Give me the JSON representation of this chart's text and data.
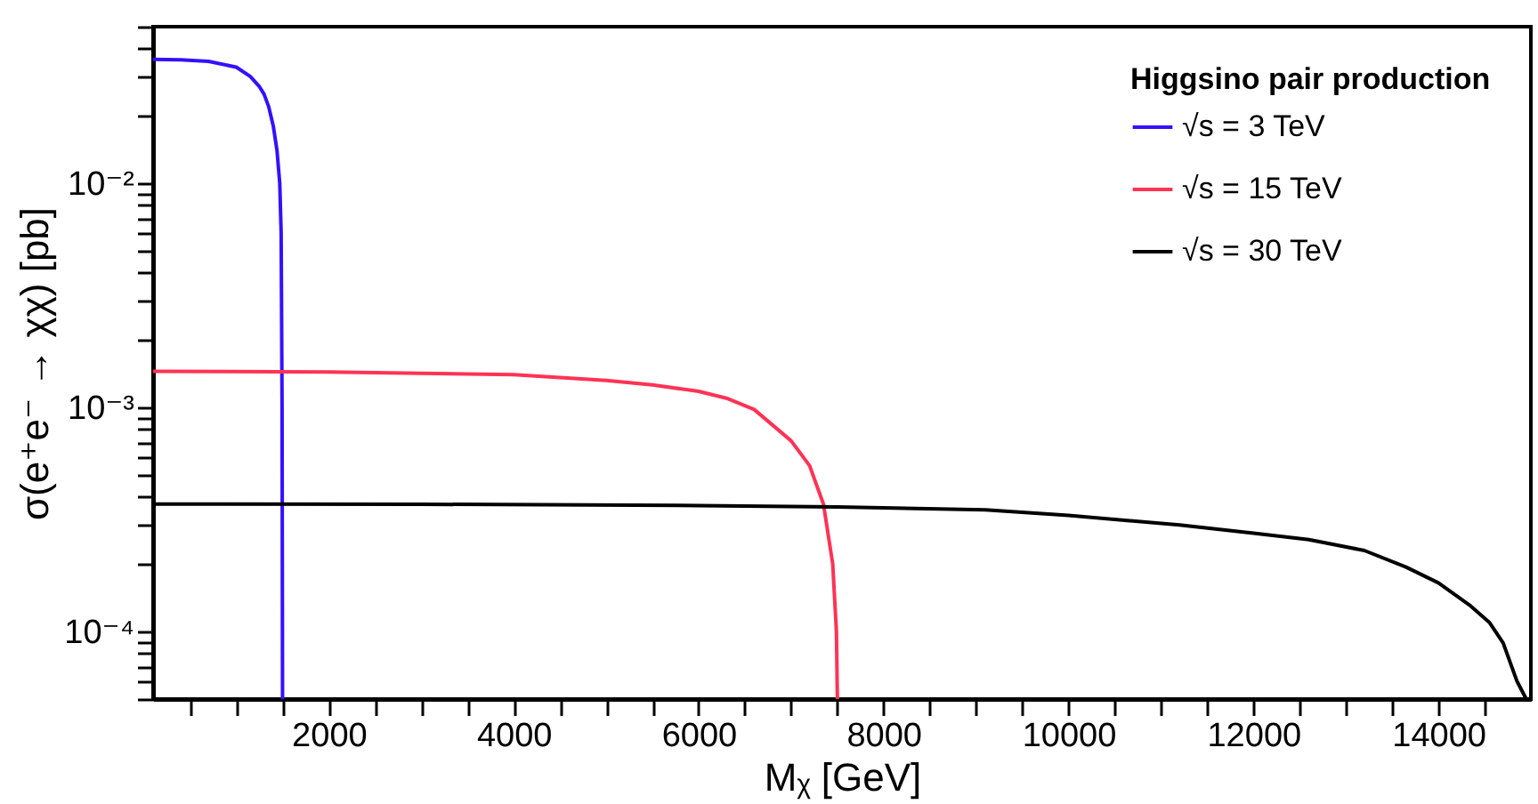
{
  "chart_data": {
    "type": "line",
    "xlabel": "Mᵪ [GeV]",
    "ylabel": "σ(e⁺e⁻ → χχ) [pb]",
    "legend_title": "Higgsino pair production",
    "legend": "top right",
    "log": "y",
    "grid": false,
    "line_style": "solid",
    "marker": "none",
    "xlim": [
      100,
      15000
    ],
    "ylim": [
      5e-05,
      0.05
    ],
    "xticks": [
      {
        "value": 500,
        "label": null
      },
      {
        "value": 1000,
        "label": null
      },
      {
        "value": 1500,
        "label": null
      },
      2000,
      {
        "value": 2500,
        "label": null
      },
      {
        "value": 3000,
        "label": null
      },
      {
        "value": 3500,
        "label": null
      },
      4000,
      {
        "value": 4500,
        "label": null
      },
      {
        "value": 5000,
        "label": null
      },
      {
        "value": 5500,
        "label": null
      },
      6000,
      {
        "value": 6500,
        "label": null
      },
      {
        "value": 7000,
        "label": null
      },
      {
        "value": 7500,
        "label": null
      },
      8000,
      {
        "value": 8500,
        "label": null
      },
      {
        "value": 9000,
        "label": null
      },
      {
        "value": 9500,
        "label": null
      },
      10000,
      {
        "value": 10500,
        "label": null
      },
      {
        "value": 11000,
        "label": null
      },
      {
        "value": 11500,
        "label": null
      },
      12000,
      {
        "value": 12500,
        "label": null
      },
      {
        "value": 13000,
        "label": null
      },
      {
        "value": 13500,
        "label": null
      },
      14000,
      {
        "value": 14500,
        "label": null
      }
    ],
    "yticks": [
      {
        "value": 5e-05,
        "label": null
      },
      {
        "value": 6e-05,
        "label": null
      },
      {
        "value": 7e-05,
        "label": null
      },
      {
        "value": 8e-05,
        "label": null
      },
      {
        "value": 9e-05,
        "label": null
      },
      {
        "value": 0.0001,
        "label": "10⁻⁴"
      },
      {
        "value": 0.0002,
        "label": null
      },
      {
        "value": 0.0003,
        "label": null
      },
      {
        "value": 0.0004,
        "label": null
      },
      {
        "value": 0.0005,
        "label": null
      },
      {
        "value": 0.0006,
        "label": null
      },
      {
        "value": 0.0007,
        "label": null
      },
      {
        "value": 0.0008,
        "label": null
      },
      {
        "value": 0.0009,
        "label": null
      },
      {
        "value": 0.001,
        "label": "10⁻³"
      },
      {
        "value": 0.002,
        "label": null
      },
      {
        "value": 0.003,
        "label": null
      },
      {
        "value": 0.004,
        "label": null
      },
      {
        "value": 0.005,
        "label": null
      },
      {
        "value": 0.006,
        "label": null
      },
      {
        "value": 0.007,
        "label": null
      },
      {
        "value": 0.008,
        "label": null
      },
      {
        "value": 0.009,
        "label": null
      },
      {
        "value": 0.01,
        "label": "10⁻²"
      },
      {
        "value": 0.02,
        "label": null
      },
      {
        "value": 0.03,
        "label": null
      },
      {
        "value": 0.04,
        "label": null
      },
      {
        "value": 0.05,
        "label": null
      }
    ],
    "series": [
      {
        "name": "√s = 3 TeV",
        "color": "#3311ff",
        "x": [
          100,
          400,
          700,
          1000,
          1150,
          1250,
          1300,
          1350,
          1400,
          1440,
          1470,
          1485,
          1495,
          1500
        ],
        "values": [
          0.0357,
          0.0356,
          0.035,
          0.033,
          0.03,
          0.027,
          0.025,
          0.022,
          0.018,
          0.014,
          0.01,
          0.006,
          0.001,
          5e-05
        ]
      },
      {
        "name": "√s = 15 TeV",
        "color": "#ff3355",
        "x": [
          100,
          2000,
          3000,
          4000,
          5000,
          5500,
          6000,
          6300,
          6600,
          7000,
          7200,
          7350,
          7450,
          7490,
          7500
        ],
        "values": [
          0.00145,
          0.00144,
          0.00142,
          0.0014,
          0.00132,
          0.00126,
          0.00118,
          0.0011,
          0.00098,
          0.00071,
          0.00055,
          0.00037,
          0.0002,
          0.0001,
          5e-05
        ]
      },
      {
        "name": "√s = 30 TeV",
        "color": "#000000",
        "x": [
          100,
          3000,
          6000,
          7500,
          9100,
          10000,
          11200,
          12000,
          12600,
          13200,
          13650,
          14000,
          14350,
          14550,
          14700,
          14850,
          14950
        ],
        "values": [
          0.000371,
          0.00037,
          0.000365,
          0.00036,
          0.000349,
          0.00033,
          0.000299,
          0.000275,
          0.000257,
          0.00023,
          0.000194,
          0.000165,
          0.00013,
          0.00011,
          8.9e-05,
          6e-05,
          5e-05
        ]
      }
    ]
  }
}
